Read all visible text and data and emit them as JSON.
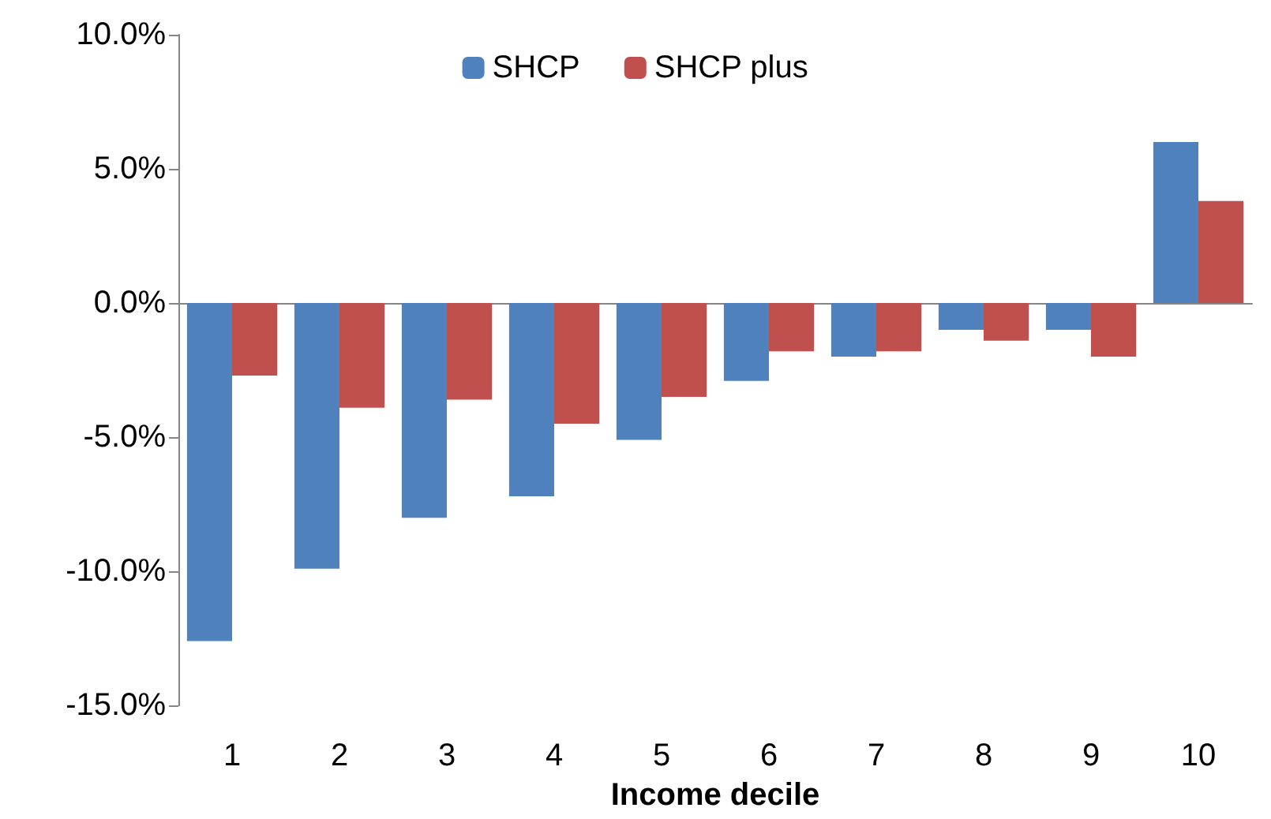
{
  "chart_data": {
    "type": "bar",
    "xlabel": "Income decile",
    "categories": [
      "1",
      "2",
      "3",
      "4",
      "5",
      "6",
      "7",
      "8",
      "9",
      "10"
    ],
    "series": [
      {
        "name": "SHCP",
        "color": "#4f81bd",
        "values": [
          -12.6,
          -9.9,
          -8.0,
          -7.2,
          -5.1,
          -2.9,
          -2.0,
          -1.0,
          -1.0,
          6.0
        ]
      },
      {
        "name": "SHCP plus",
        "color": "#c0504d",
        "values": [
          -2.7,
          -3.9,
          -3.6,
          -4.5,
          -3.5,
          -1.8,
          -1.8,
          -1.4,
          -2.0,
          3.8
        ]
      }
    ],
    "ylim": [
      -15,
      10
    ],
    "yticks": [
      {
        "value": -15,
        "label": "-15.0%"
      },
      {
        "value": -10,
        "label": "-10.0%"
      },
      {
        "value": -5,
        "label": "-5.0%"
      },
      {
        "value": 0,
        "label": "0.0%"
      },
      {
        "value": 5,
        "label": "5.0%"
      },
      {
        "value": 10,
        "label": "10.0%"
      }
    ],
    "legend": "top"
  }
}
